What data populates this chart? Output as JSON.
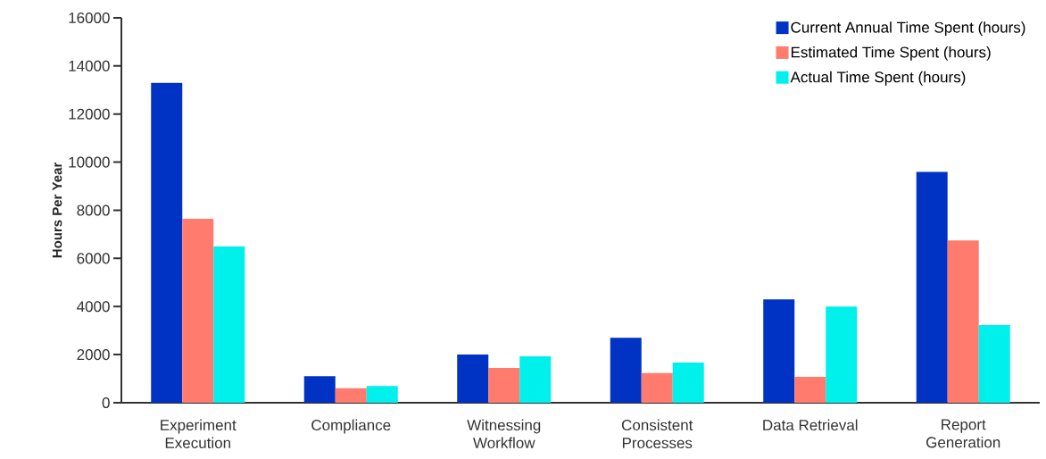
{
  "chart_data": {
    "type": "bar",
    "ylabel": "**Hours Per Year**",
    "categories": [
      "Experiment Execution",
      "Compliance",
      "Witnessing Workflow",
      "Consistent Processes",
      "Data Retrieval",
      "Report Generation"
    ],
    "series": [
      {
        "name": "Current Annual Time Spent (hours)",
        "color": "#0033c4",
        "values": [
          13300,
          1100,
          2000,
          2700,
          4300,
          9600
        ]
      },
      {
        "name": "Estimated Time Spent (hours)",
        "color": "#ff7b6e",
        "values": [
          7650,
          600,
          1450,
          1230,
          1080,
          6750
        ]
      },
      {
        "name": "Actual Time Spent (hours)",
        "color": "#00f0ec",
        "values": [
          6500,
          700,
          1930,
          1670,
          4000,
          3230
        ]
      }
    ],
    "ylim": [
      0,
      16000
    ],
    "yticks": [
      0,
      2000,
      4000,
      6000,
      8000,
      10000,
      12000,
      14000,
      16000
    ],
    "legend": "top right",
    "grid": false
  }
}
